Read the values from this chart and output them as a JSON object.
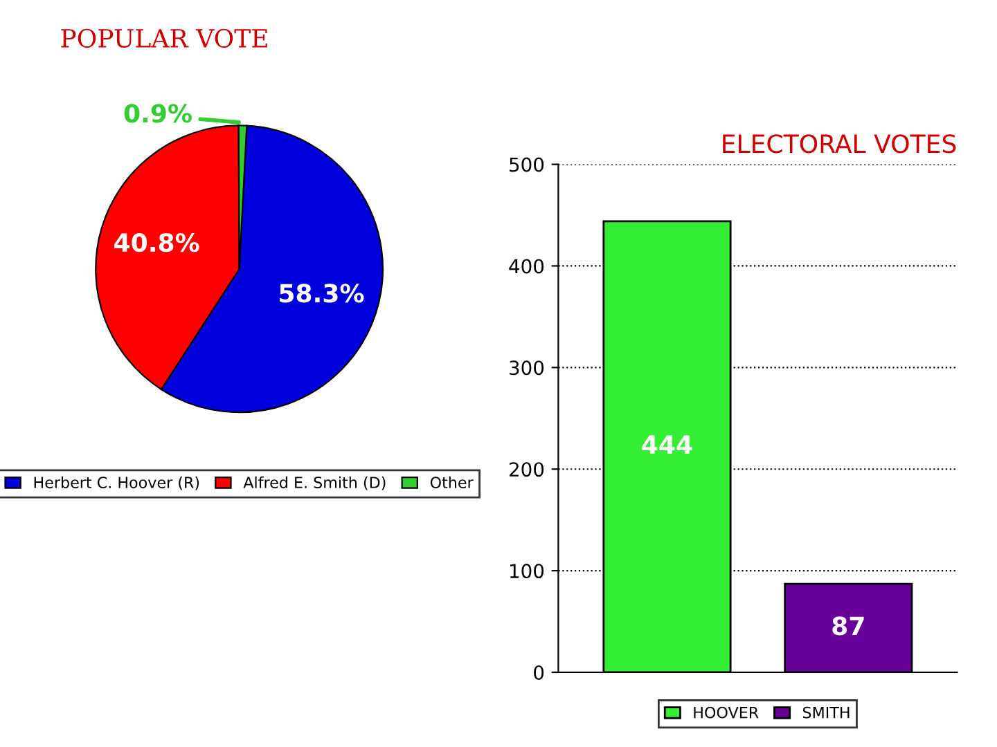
{
  "chart_data": [
    {
      "type": "pie",
      "title": "POPULAR VOTE",
      "categories": [
        "Herbert C. Hoover (R)",
        "Alfred E. Smith (D)",
        "Other"
      ],
      "values": [
        58.3,
        40.8,
        0.9
      ],
      "colors": [
        "#0000dd",
        "#ff0000",
        "#33cc33"
      ],
      "value_labels": [
        "58.3%",
        "40.8%",
        "0.9%"
      ],
      "legend": "bottom"
    },
    {
      "type": "bar",
      "title": "ELECTORAL VOTES",
      "categories": [
        null,
        null
      ],
      "series": [
        {
          "name": "HOOVER",
          "color": "#33ee33",
          "values": [
            444,
            null
          ]
        },
        {
          "name": "SMITH",
          "color": "#660099",
          "values": [
            null,
            87
          ]
        }
      ],
      "ylim": [
        0,
        500
      ],
      "yticks": [
        0,
        100,
        200,
        300,
        400,
        500
      ],
      "grid": "y",
      "data_labels": true,
      "legend": "bottom"
    }
  ]
}
